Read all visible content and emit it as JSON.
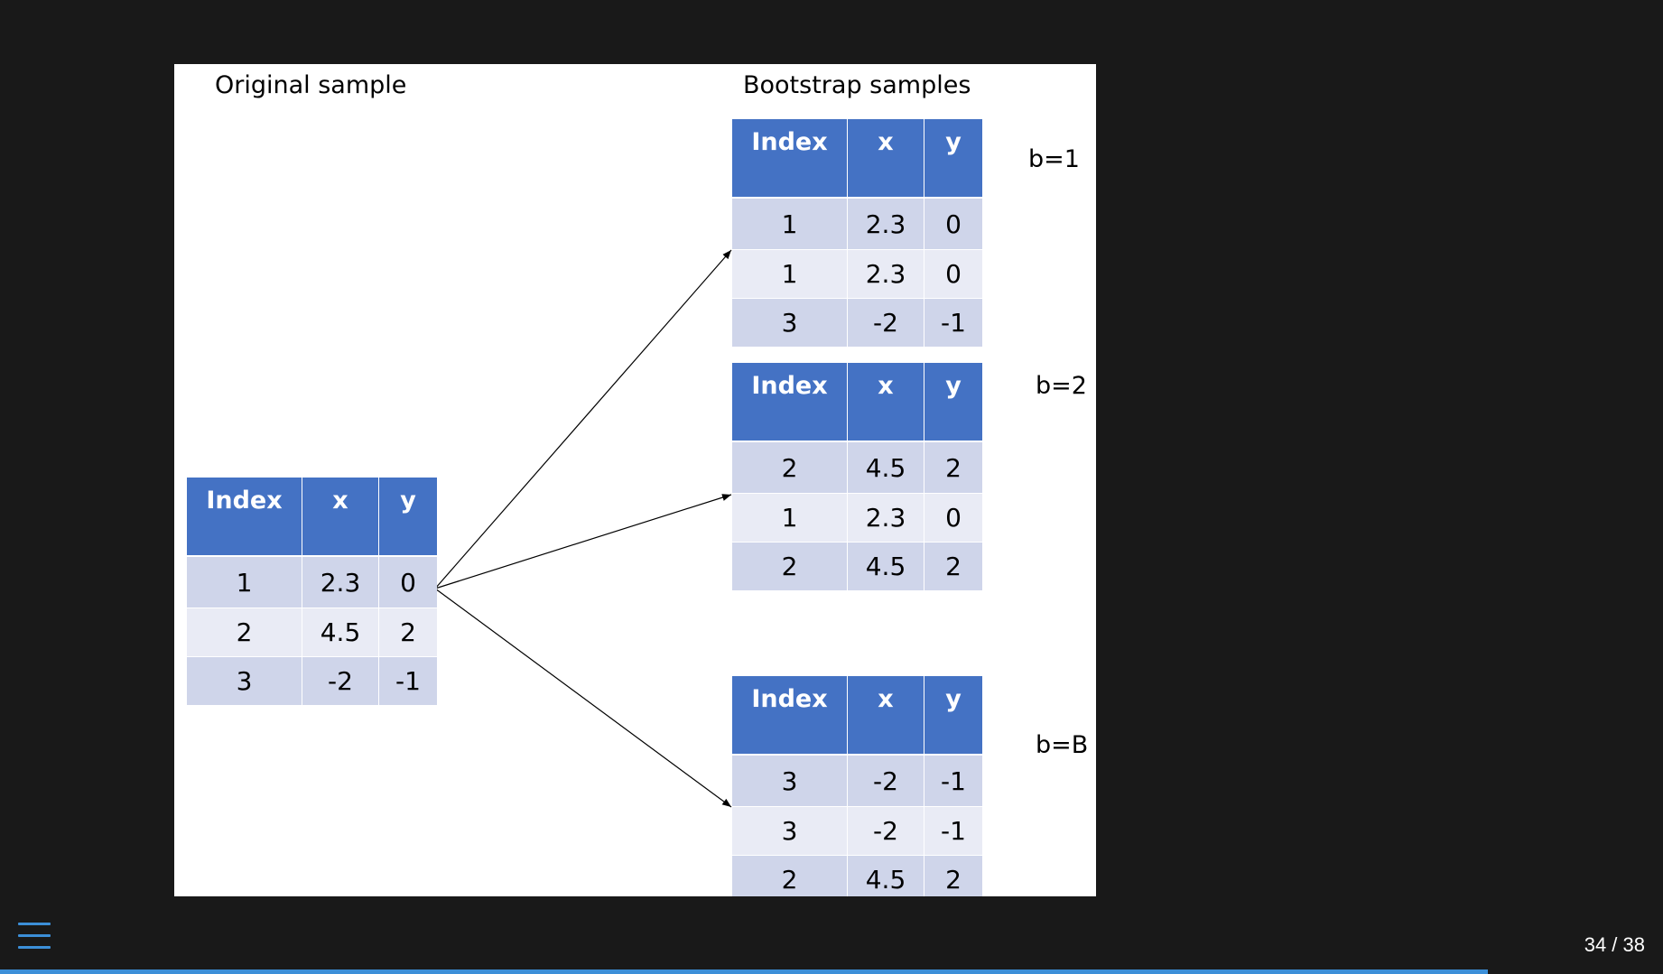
{
  "slide": {
    "left_caption": "Original sample",
    "right_caption": "Bootstrap samples",
    "arrow_color": "#000000",
    "header_color": "#4472c4",
    "row_colors": [
      "#cfd5ea",
      "#e9ebf5"
    ],
    "tables": [
      {
        "id": "original",
        "label": "",
        "headers": [
          "Index",
          "x",
          "y"
        ],
        "rows": [
          [
            "1",
            "2.3",
            "0"
          ],
          [
            "2",
            "4.5",
            "2"
          ],
          [
            "3",
            "-2",
            "-1"
          ]
        ]
      },
      {
        "id": "b1",
        "label": "b=1",
        "headers": [
          "Index",
          "x",
          "y"
        ],
        "rows": [
          [
            "1",
            "2.3",
            "0"
          ],
          [
            "1",
            "2.3",
            "0"
          ],
          [
            "3",
            "-2",
            "-1"
          ]
        ]
      },
      {
        "id": "b2",
        "label": "b=2",
        "headers": [
          "Index",
          "x",
          "y"
        ],
        "rows": [
          [
            "2",
            "4.5",
            "2"
          ],
          [
            "1",
            "2.3",
            "0"
          ],
          [
            "2",
            "4.5",
            "2"
          ]
        ]
      },
      {
        "id": "bB",
        "label": "b=B",
        "headers": [
          "Index",
          "x",
          "y"
        ],
        "rows": [
          [
            "3",
            "-2",
            "-1"
          ],
          [
            "3",
            "-2",
            "-1"
          ],
          [
            "2",
            "4.5",
            "2"
          ]
        ]
      }
    ]
  },
  "nav": {
    "menu_icon": "hamburger-menu-icon",
    "page_counter": "34 / 38",
    "current_page": 34,
    "total_pages": 38,
    "accent_color": "#3c8fd8"
  }
}
